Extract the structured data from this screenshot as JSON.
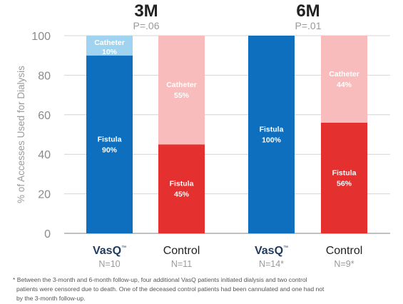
{
  "chart_data": {
    "type": "bar",
    "stacked": true,
    "ylabel": "% of Accesses Used for Dialysis",
    "ylim": [
      0,
      100
    ],
    "yticks": [
      0,
      20,
      40,
      60,
      80,
      100
    ],
    "grid": true,
    "groups": [
      {
        "title": "3M",
        "pvalue": "P=.06"
      },
      {
        "title": "6M",
        "pvalue": "P=.01"
      }
    ],
    "bars": [
      {
        "group": 0,
        "label": "VasQ",
        "tm": "™",
        "n": "N=10",
        "segments": [
          {
            "name": "Fistula",
            "value": 90,
            "label": "90%",
            "color": "#0f6fbf"
          },
          {
            "name": "Catheter",
            "value": 10,
            "label": "10%",
            "color": "#9fd3ef"
          }
        ]
      },
      {
        "group": 0,
        "label": "Control",
        "n": "N=11",
        "segments": [
          {
            "name": "Fistula",
            "value": 45,
            "label": "45%",
            "color": "#e53030"
          },
          {
            "name": "Catheter",
            "value": 55,
            "label": "55%",
            "color": "#f8bcbc"
          }
        ]
      },
      {
        "group": 1,
        "label": "VasQ",
        "tm": "™",
        "n": "N=14*",
        "segments": [
          {
            "name": "Fistula",
            "value": 100,
            "label": "100%",
            "color": "#0f6fbf"
          }
        ]
      },
      {
        "group": 1,
        "label": "Control",
        "n": "N=9*",
        "segments": [
          {
            "name": "Fistula",
            "value": 56,
            "label": "56%",
            "color": "#e53030"
          },
          {
            "name": "Catheter",
            "value": 44,
            "label": "44%",
            "color": "#f8bcbc"
          }
        ]
      }
    ]
  },
  "footnote": {
    "lines": [
      "* Between the 3-month and 6-month follow-up, four additional VasQ patients initiated dialysis and two control",
      "patients were censored due to death.  One of the deceased control patients had been cannulated and one had not",
      "by the 3-month follow-up."
    ]
  }
}
